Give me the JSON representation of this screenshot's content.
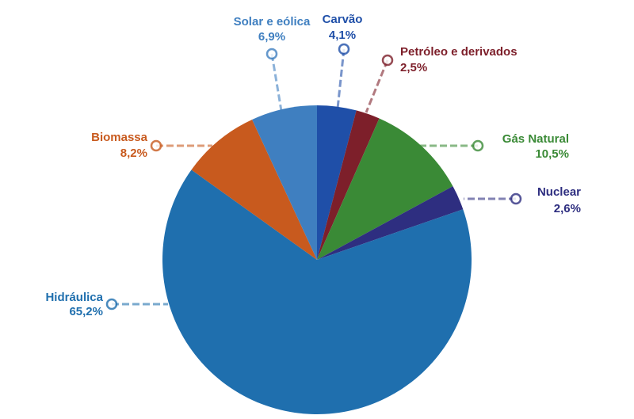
{
  "chart_data": {
    "type": "pie",
    "categories": [
      "Carvão",
      "Petróleo e derivados",
      "Gás Natural",
      "Nuclear",
      "Hidráulica",
      "Biomassa",
      "Solar e eólica"
    ],
    "values": [
      4.1,
      2.5,
      10.5,
      2.6,
      65.2,
      8.2,
      6.9
    ],
    "value_labels": [
      "4,1%",
      "2,5%",
      "10,5%",
      "2,6%",
      "65,2%",
      "8,2%",
      "6,9%"
    ],
    "colors": [
      "#1f4fa8",
      "#7d1f2a",
      "#3a8a36",
      "#2e2e80",
      "#1f6fae",
      "#c85a1e",
      "#3f7fc0"
    ]
  }
}
